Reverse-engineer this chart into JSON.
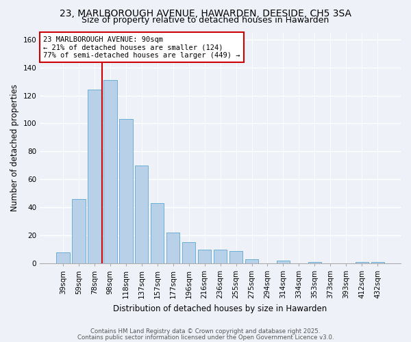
{
  "title": "23, MARLBOROUGH AVENUE, HAWARDEN, DEESIDE, CH5 3SA",
  "subtitle": "Size of property relative to detached houses in Hawarden",
  "xlabel": "Distribution of detached houses by size in Hawarden",
  "ylabel": "Number of detached properties",
  "bar_labels": [
    "39sqm",
    "59sqm",
    "78sqm",
    "98sqm",
    "118sqm",
    "137sqm",
    "157sqm",
    "177sqm",
    "196sqm",
    "216sqm",
    "236sqm",
    "255sqm",
    "275sqm",
    "294sqm",
    "314sqm",
    "334sqm",
    "353sqm",
    "373sqm",
    "393sqm",
    "412sqm",
    "432sqm"
  ],
  "bar_values": [
    8,
    46,
    124,
    131,
    103,
    70,
    43,
    22,
    15,
    10,
    10,
    9,
    3,
    0,
    2,
    0,
    1,
    0,
    0,
    1,
    1
  ],
  "bar_color": "#b8d0e8",
  "bar_edge_color": "#6aaed6",
  "vline_color": "#cc0000",
  "ylim": [
    0,
    165
  ],
  "yticks": [
    0,
    20,
    40,
    60,
    80,
    100,
    120,
    140,
    160
  ],
  "annotation_title": "23 MARLBOROUGH AVENUE: 90sqm",
  "annotation_line1": "← 21% of detached houses are smaller (124)",
  "annotation_line2": "77% of semi-detached houses are larger (449) →",
  "footnote1": "Contains HM Land Registry data © Crown copyright and database right 2025.",
  "footnote2": "Contains public sector information licensed under the Open Government Licence v3.0.",
  "background_color": "#eef2f8",
  "grid_color": "#ffffff",
  "title_fontsize": 10,
  "subtitle_fontsize": 9,
  "xlabel_fontsize": 8.5,
  "ylabel_fontsize": 8.5,
  "tick_fontsize": 7.5,
  "ann_fontsize": 7.5,
  "footnote_fontsize": 6.2
}
